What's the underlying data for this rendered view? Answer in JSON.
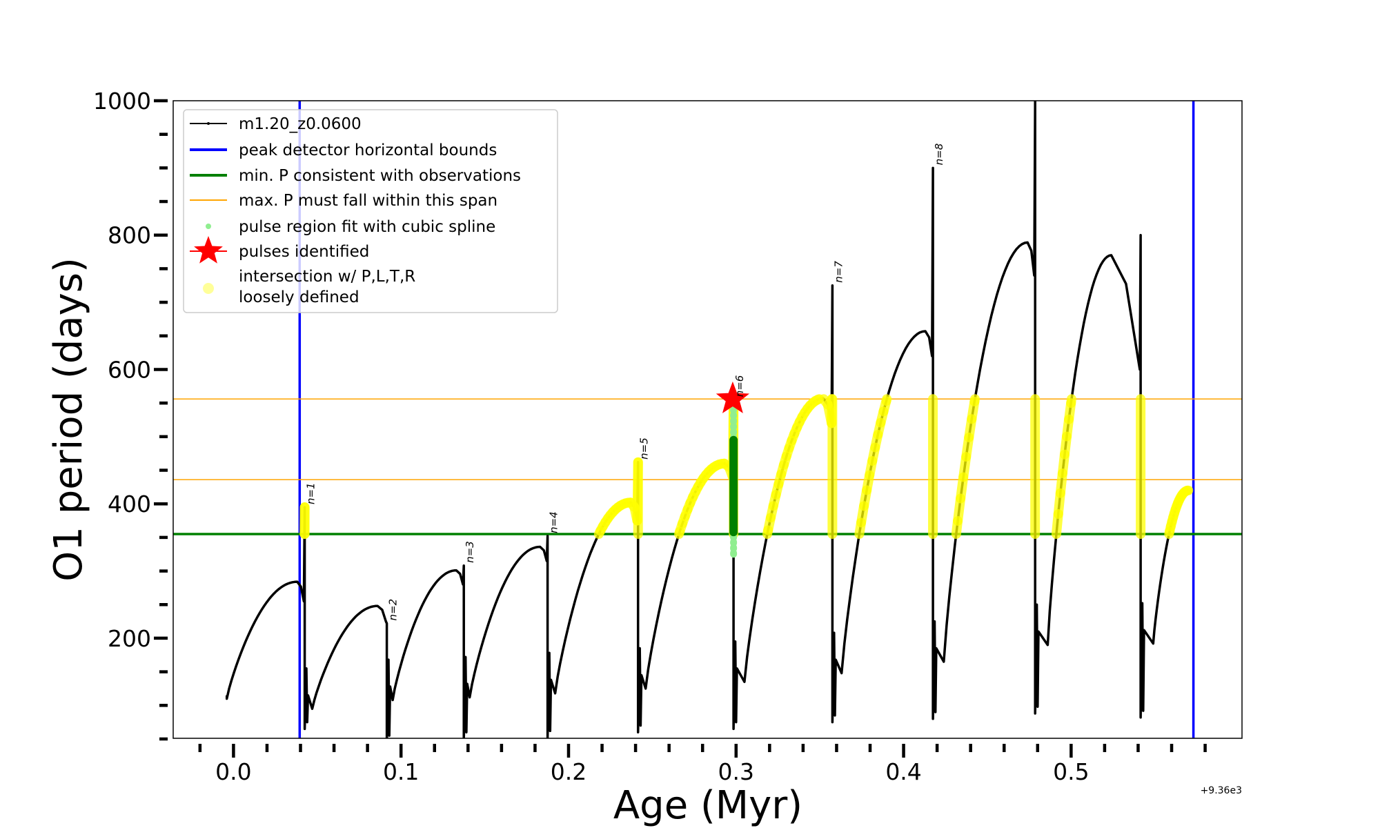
{
  "chart_data": {
    "type": "line",
    "xlabel": "Age (Myr)",
    "ylabel": "O1 period (days)",
    "x_offset_label": "+9.36e3",
    "xlim": [
      -0.036,
      0.602
    ],
    "ylim": [
      51,
      1000
    ],
    "xticks": [
      "0.0",
      "0.1",
      "0.2",
      "0.3",
      "0.4",
      "0.5"
    ],
    "xtick_values": [
      0.0,
      0.1,
      0.2,
      0.3,
      0.4,
      0.5
    ],
    "yticks": [
      "200",
      "400",
      "600",
      "800",
      "1000"
    ],
    "ytick_values": [
      200,
      400,
      600,
      800,
      1000
    ],
    "grid": false,
    "legend_placement": "upper-left",
    "legend": [
      {
        "label": "m1.20_z0.0600",
        "kind": "line-marker",
        "color": "#000000"
      },
      {
        "label": "peak detector horizontal bounds",
        "kind": "line",
        "color": "#0000ff"
      },
      {
        "label": "min. P consistent with observations",
        "kind": "line",
        "color": "#008000"
      },
      {
        "label": "max. P must fall within this span",
        "kind": "thin-line",
        "color": "#ffa500"
      },
      {
        "label": "pulse region fit with cubic spline",
        "kind": "dot",
        "color": "#90ee90"
      },
      {
        "label": "pulses identified",
        "kind": "star",
        "color": "#ff0000"
      },
      {
        "label": "intersection w/ P,L,T,R",
        "label2": "loosely defined",
        "kind": "dot-big",
        "color": "#ffff99"
      }
    ],
    "vertical_bounds": [
      0.0395,
      0.573
    ],
    "min_period": 355,
    "max_period_span": [
      436,
      556
    ],
    "series": {
      "name": "m1.20_z0.0600",
      "color": "#000000",
      "start": [
        -0.004,
        110
      ],
      "first_peak": [
        0.038,
        284
      ],
      "pulses": [
        {
          "label": "n=1",
          "x": 0.0425,
          "pre_y": 255,
          "top": 395,
          "bottom": 65,
          "trough": [
            0.047,
            95
          ],
          "peak": [
            0.086,
            248
          ]
        },
        {
          "label": "n=2",
          "x": 0.0915,
          "pre_y": 225,
          "top": 222,
          "bottom": 45,
          "trough": [
            0.095,
            108
          ],
          "peak": [
            0.133,
            301
          ]
        },
        {
          "label": "n=3",
          "x": 0.1375,
          "pre_y": 280,
          "top": 308,
          "bottom": 50,
          "trough": [
            0.141,
            112
          ],
          "peak": [
            0.183,
            336
          ]
        },
        {
          "label": "n=4",
          "x": 0.1875,
          "pre_y": 315,
          "top": 352,
          "bottom": 52,
          "trough": [
            0.192,
            118
          ],
          "peak": [
            0.237,
            402
          ]
        },
        {
          "label": "n=5",
          "x": 0.2415,
          "pre_y": 375,
          "top": 462,
          "bottom": 60,
          "trough": [
            0.246,
            125
          ],
          "peak": [
            0.293,
            460
          ]
        },
        {
          "label": "n=6",
          "x": 0.2985,
          "pre_y": 440,
          "top": 555,
          "bottom": 65,
          "trough": [
            0.305,
            135
          ],
          "peak": [
            0.352,
            557
          ]
        },
        {
          "label": "n=7",
          "x": 0.3575,
          "pre_y": 520,
          "top": 725,
          "bottom": 75,
          "trough": [
            0.363,
            148
          ],
          "peak": [
            0.413,
            657
          ]
        },
        {
          "label": "n=8",
          "x": 0.4175,
          "pre_y": 620,
          "top": 900,
          "bottom": 80,
          "trough": [
            0.424,
            165
          ],
          "peak": [
            0.474,
            789
          ]
        },
        {
          "label": "",
          "x": 0.4785,
          "pre_y": 740,
          "top": 1000,
          "bottom": 88,
          "trough": [
            0.486,
            190
          ],
          "peak": [
            0.524,
            770
          ]
        },
        {
          "label": "",
          "x": 0.5415,
          "pre_y": 600,
          "top": 800,
          "bottom": 82,
          "trough": [
            0.549,
            192
          ],
          "peak": [
            0.57,
            420
          ]
        }
      ]
    },
    "spline_fit": {
      "x": 0.2985,
      "y_range": [
        325,
        560
      ],
      "color": "#90ee90"
    },
    "spline_fit_dense": {
      "x": 0.2985,
      "y_range": [
        358,
        495
      ],
      "color": "#008000"
    },
    "pulse_identified": {
      "x": 0.298,
      "y": 556,
      "color": "#ff0000"
    },
    "intersection_color": "#ffff00"
  }
}
